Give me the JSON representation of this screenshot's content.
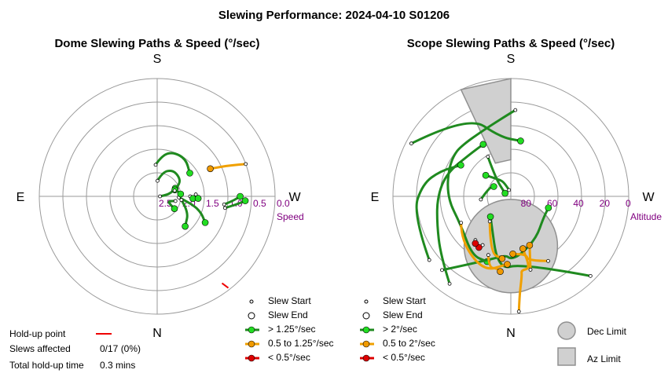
{
  "title": "Slewing Performance: 2024-04-10 S01206",
  "colors": {
    "fast": "#1f8a1f",
    "fast_fill": "#22dd22",
    "medium": "#f0a000",
    "medium_fill": "#f09a00",
    "slow": "#dd0000",
    "slow_fill": "#dd0000",
    "holdup": "#ee0000",
    "limit_fill": "#d0d0d0",
    "limit_stroke": "#909090",
    "grid": "#9a9a9a",
    "tick": "#800080"
  },
  "dome": {
    "subtitle": "Dome Slewing Paths & Speed (°/sec)",
    "compass": {
      "top": "S",
      "bottom": "N",
      "left": "E",
      "right": "W"
    },
    "axis_label": "Speed",
    "ticks": [
      "2.5",
      "2.0",
      "1.5",
      "1.0",
      "0.5",
      "0.0"
    ],
    "legend": {
      "start": "Slew Start",
      "end": "Slew End",
      "fast": "> 1.25°/sec",
      "medium": "0.5 to 1.25°/sec",
      "slow": "< 0.5°/sec"
    }
  },
  "scope": {
    "subtitle": "Scope Slewing Paths & Speed (°/sec)",
    "compass": {
      "top": "S",
      "bottom": "N",
      "left": "E",
      "right": "W"
    },
    "axis_label": "Altitude",
    "ticks": [
      "80",
      "60",
      "40",
      "20",
      "0"
    ],
    "legend": {
      "start": "Slew Start",
      "end": "Slew End",
      "fast": "> 2°/sec",
      "medium": "0.5 to 2°/sec",
      "slow": "< 0.5°/sec"
    },
    "limits": {
      "dec": "Dec Limit",
      "az": "Az Limit"
    }
  },
  "holdup": {
    "point_label": "Hold-up point",
    "slews_label": "Slews affected",
    "slews_value": "0/17 (0%)",
    "time_label": "Total hold-up time",
    "time_value": "0.3 mins"
  },
  "chart_data": [
    {
      "type": "scatter",
      "title": "Dome Slewing Paths & Speed (°/sec)",
      "coordinate_system": "polar",
      "radial_axis": {
        "label": "Speed",
        "range": [
          2.5,
          0.0
        ],
        "ticks": [
          2.5,
          2.0,
          1.5,
          1.0,
          0.5,
          0.0
        ]
      },
      "azimuth_labels": {
        "top": "S",
        "bottom": "N",
        "left": "E",
        "right": "W"
      },
      "paths": [
        {
          "speed_class": "fast",
          "points": [
            [
              0.0,
              2.44
            ],
            [
              0.14,
              2.3
            ],
            [
              0.28,
              2.18
            ],
            [
              0.42,
              2.08
            ]
          ]
        },
        {
          "speed_class": "fast",
          "points": [
            [
              -0.25,
              2.1
            ],
            [
              -0.4,
              2.25
            ],
            [
              -0.55,
              2.18
            ],
            [
              -0.62,
              2.05
            ]
          ]
        },
        {
          "speed_class": "fast",
          "points": [
            [
              1.55,
              2.17
            ],
            [
              1.35,
              1.97
            ],
            [
              1.05,
              1.86
            ],
            [
              0.8,
              1.87
            ],
            [
              0.55,
              1.92
            ],
            [
              0.35,
              2.1
            ]
          ]
        },
        {
          "speed_class": "fast",
          "points": [
            [
              1.62,
              1.83
            ],
            [
              1.45,
              1.62
            ],
            [
              1.22,
              1.5
            ],
            [
              0.92,
              1.5
            ],
            [
              0.62,
              1.65
            ]
          ]
        },
        {
          "speed_class": "fast",
          "points": [
            [
              -0.05,
              2.04
            ],
            [
              -0.22,
              1.73
            ],
            [
              -0.36,
              1.5
            ],
            [
              -0.5,
              1.34
            ]
          ]
        },
        {
          "speed_class": "fast",
          "points": [
            [
              0.32,
              2.11
            ],
            [
              0.2,
              2.02
            ],
            [
              0.1,
              2.0
            ]
          ]
        },
        {
          "speed_class": "fast",
          "points": [
            [
              -0.15,
              1.98
            ],
            [
              -0.45,
              1.76
            ],
            [
              -0.82,
              1.63
            ]
          ]
        },
        {
          "speed_class": "fast",
          "points": [
            [
              -0.12,
              1.07
            ],
            [
              -0.06,
              0.89
            ],
            [
              0.0,
              0.74
            ]
          ]
        },
        {
          "speed_class": "fast",
          "points": [
            [
              -0.17,
              1.04
            ],
            [
              -0.1,
              0.8
            ],
            [
              -0.05,
              0.63
            ]
          ]
        },
        {
          "speed_class": "medium",
          "points": [
            [
              0.35,
              0.5
            ],
            [
              0.4,
              0.8
            ],
            [
              0.48,
              1.23
            ]
          ]
        },
        {
          "speed_class": "fast",
          "points": [
            [
              0.0,
              1.8
            ],
            [
              -0.06,
              1.74
            ]
          ]
        },
        {
          "speed_class": "fast",
          "points": [
            [
              0.05,
              1.68
            ],
            [
              -0.05,
              1.63
            ]
          ]
        }
      ],
      "hold_up_points": [
        [
          -0.92,
          0.12
        ]
      ]
    },
    {
      "type": "scatter",
      "title": "Scope Slewing Paths & Speed (°/sec)",
      "coordinate_system": "polar",
      "radial_axis": {
        "label": "Altitude",
        "range": [
          90,
          0
        ],
        "ticks": [
          80,
          60,
          40,
          20,
          0
        ]
      },
      "azimuth_labels": {
        "top": "S",
        "bottom": "N",
        "left": "E",
        "right": "W"
      },
      "paths": [
        {
          "speed_class": "fast",
          "points": [
            [
              135.0,
              4.0
            ],
            [
              170.0,
              38.0
            ],
            [
              190.0,
              33.0
            ],
            [
              225.0,
              68.0
            ]
          ]
        },
        {
          "speed_class": "fast",
          "points": [
            [
              3.0,
              24.0
            ],
            [
              -40.0,
              35.0
            ],
            [
              -60.0,
              36.0
            ],
            [
              -90.0,
              41.0
            ],
            [
              -120.0,
              46.0
            ],
            [
              -147.0,
              36.0
            ],
            [
              -160.0,
              37.0
            ]
          ]
        },
        {
          "speed_class": "fast",
          "points": [
            [
              -145.0,
              8.5
            ],
            [
              -130.0,
              20.0
            ],
            [
              -110.0,
              30.0
            ],
            [
              -90.0,
              34.0
            ],
            [
              -70.0,
              38.0
            ],
            [
              -45.0,
              45.0
            ],
            [
              -28.0,
              45.0
            ]
          ]
        },
        {
          "speed_class": "fast",
          "points": [
            [
              -137.0,
              13.0
            ],
            [
              -160.0,
              38.0
            ],
            [
              -175.0,
              45.0
            ],
            [
              180.0,
              42.0
            ],
            [
              170.0,
              45.0
            ],
            [
              148.0,
              53.0
            ],
            [
              125.0,
              60.0
            ],
            [
              107.0,
              60.0
            ]
          ]
        },
        {
          "speed_class": "fast",
          "points": [
            [
              -62.0,
              4.0
            ],
            [
              -28.0,
              20.0
            ],
            [
              -10.0,
              44.0
            ],
            [
              10.0,
              47.0
            ]
          ]
        },
        {
          "speed_class": "fast",
          "points": [
            [
              -128.0,
              11.0
            ],
            [
              -100.0,
              14.0
            ],
            [
              -82.0,
              22.0
            ],
            [
              -70.0,
              33.0
            ],
            [
              -58.0,
              45.0
            ]
          ]
        },
        {
          "speed_class": "fast",
          "points": [
            [
              -30.0,
              55.0
            ],
            [
              -40.0,
              72.0
            ],
            [
              -62.0,
              85.0
            ]
          ]
        },
        {
          "speed_class": "fast",
          "points": [
            [
              -16.0,
              85.0
            ],
            [
              -25.0,
              78.0
            ],
            [
              -36.0,
              74.0
            ],
            [
              -50.0,
              65.0
            ]
          ]
        },
        {
          "speed_class": "fast",
          "points": [
            [
              -96.0,
              67.0
            ],
            [
              -70.0,
              72.0
            ],
            [
              -60.0,
              75.0
            ]
          ]
        },
        {
          "speed_class": "medium",
          "points": [
            [
              176.0,
              1.8
            ],
            [
              175.0,
              14.0
            ],
            [
              172.0,
              29.0
            ],
            [
              172.0,
              33.0
            ],
            [
              165.0,
              33.0
            ],
            [
              167.0,
              49.0
            ]
          ]
        },
        {
          "speed_class": "medium",
          "points": [
            [
              150.0,
              33.0
            ],
            [
              165.0,
              39.0
            ],
            [
              165.0,
              44.0
            ],
            [
              178.0,
              46.0
            ]
          ]
        },
        {
          "speed_class": "medium",
          "points": [
            [
              -159.0,
              42.0
            ],
            [
              -163.0,
              33.0
            ],
            [
              -169.0,
              34.0
            ],
            [
              -172.0,
              32.0
            ]
          ]
        },
        {
          "speed_class": "medium",
          "points": [
            [
              -118.0,
              47.0
            ],
            [
              -132.0,
              39.0
            ],
            [
              -160.0,
              29.0
            ],
            [
              -177.0,
              38.0
            ]
          ]
        },
        {
          "speed_class": "medium",
          "points": [
            [
              -140.0,
              65.0
            ],
            [
              -160.0,
              44.0
            ],
            [
              -172.0,
              42.0
            ]
          ]
        },
        {
          "speed_class": "medium",
          "points": [
            [
              165.0,
              32.0
            ],
            [
              159.0,
              50.0
            ]
          ]
        },
        {
          "speed_class": "slow",
          "points": [
            [
              -150.0,
              47.0
            ],
            [
              -148.0,
              44.0
            ]
          ]
        },
        {
          "speed_class": "slow",
          "points": [
            [
              -141.0,
              47.0
            ],
            [
              -143.0,
              45.0
            ]
          ]
        }
      ],
      "dec_limit": {
        "center": [
          0.0,
          70.0
        ],
        "radius_deg": 23.0
      },
      "az_limit": {
        "az_range": [
          -25.0,
          0.0
        ],
        "alt_range": [
          0.0,
          62.0
        ]
      }
    }
  ]
}
